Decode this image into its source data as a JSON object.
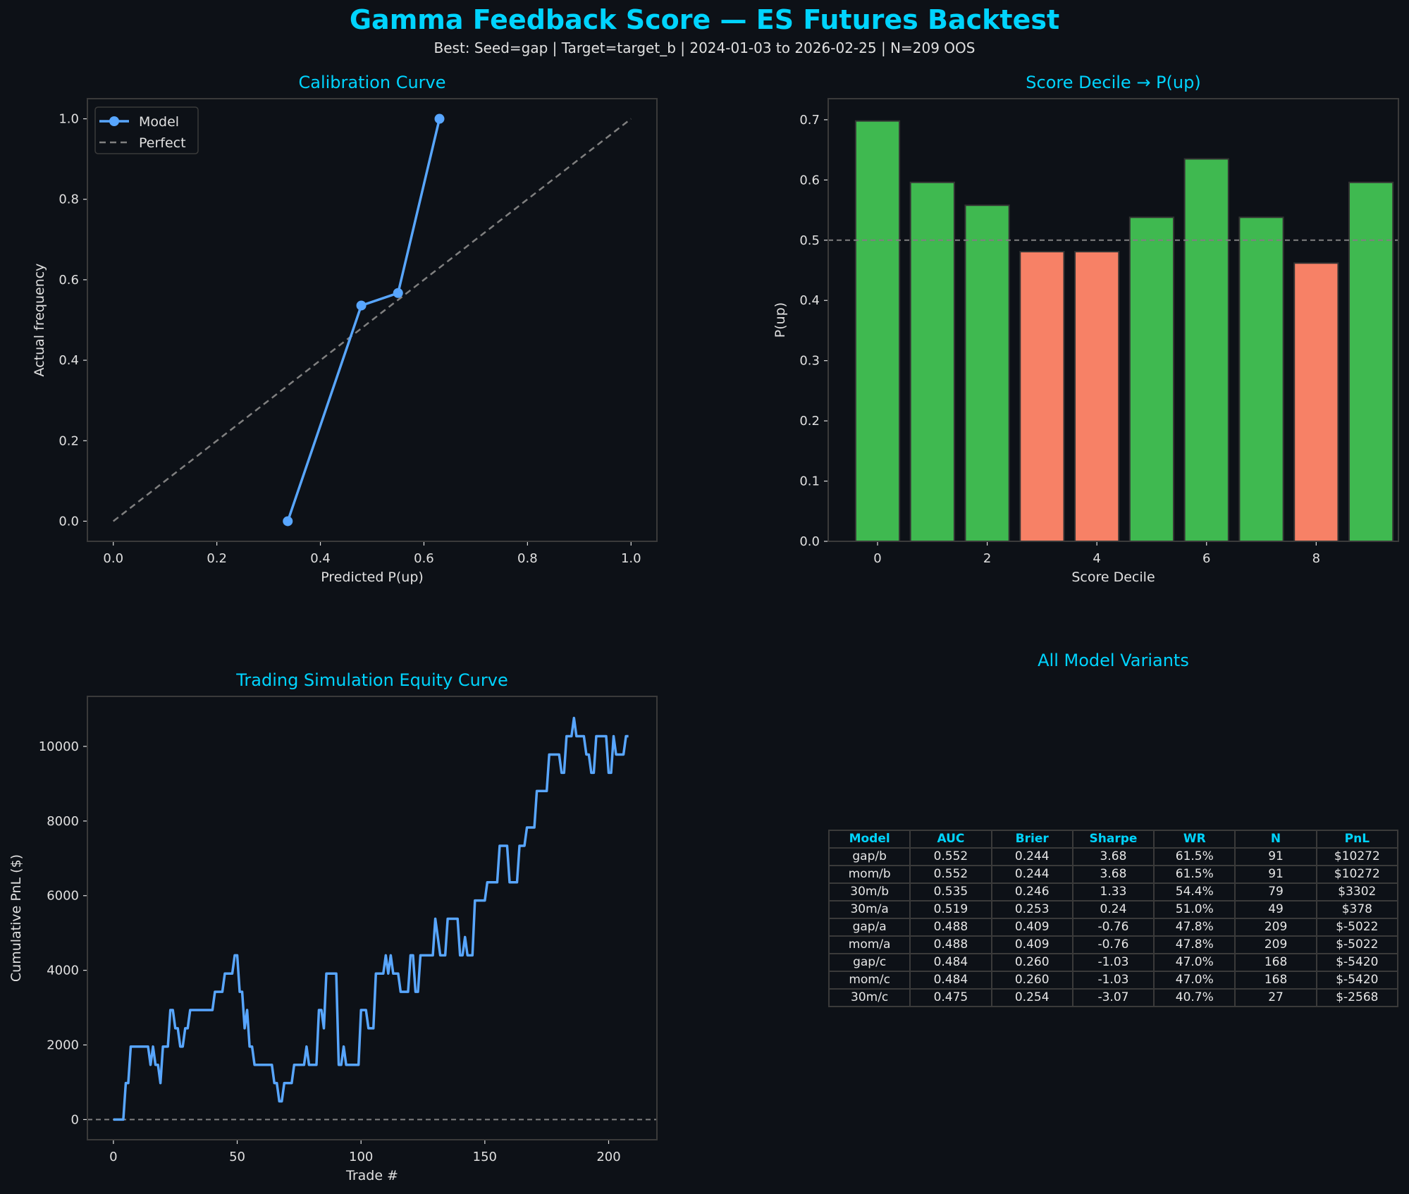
{
  "header": {
    "title": "Gamma Feedback Score — ES Futures Backtest",
    "subtitle": "Best: Seed=gap | Target=target_b | 2024-01-03 to 2026-02-25 | N=209 OOS"
  },
  "colors": {
    "background": "#0d1117",
    "accent": "#00d4ff",
    "model_line": "#58a6ff",
    "reference_line": "#808080",
    "bar_above": "#3fb950",
    "bar_below": "#f78166",
    "spine": "#3a3a3a",
    "text": "#e0e0e0"
  },
  "chart_data": [
    {
      "id": "calibration",
      "type": "line",
      "title": "Calibration Curve",
      "xlabel": "Predicted P(up)",
      "ylabel": "Actual frequency",
      "xlim": [
        -0.05,
        1.05
      ],
      "ylim": [
        -0.05,
        1.05
      ],
      "xticks": [
        0.0,
        0.2,
        0.4,
        0.6,
        0.8,
        1.0
      ],
      "yticks": [
        0.0,
        0.2,
        0.4,
        0.6,
        0.8,
        1.0
      ],
      "xtick_labels": [
        "0.0",
        "0.2",
        "0.4",
        "0.6",
        "0.8",
        "1.0"
      ],
      "ytick_labels": [
        "0.0",
        "0.2",
        "0.4",
        "0.6",
        "0.8",
        "1.0"
      ],
      "legend": {
        "position": "top-left",
        "entries": [
          "Model",
          "Perfect"
        ]
      },
      "series": [
        {
          "name": "Model",
          "style": "solid-marker",
          "x": [
            0.337,
            0.479,
            0.55,
            0.63
          ],
          "y": [
            0.0,
            0.536,
            0.567,
            1.0
          ]
        },
        {
          "name": "Perfect",
          "style": "dashed",
          "x": [
            0.0,
            1.0
          ],
          "y": [
            0.0,
            1.0
          ]
        }
      ]
    },
    {
      "id": "decile",
      "type": "bar",
      "title": "Score Decile → P(up)",
      "xlabel": "Score Decile",
      "ylabel": "P(up)",
      "categories": [
        0,
        1,
        2,
        3,
        4,
        5,
        6,
        7,
        8,
        9
      ],
      "values": [
        0.698,
        0.596,
        0.558,
        0.481,
        0.481,
        0.538,
        0.635,
        0.538,
        0.462,
        0.596
      ],
      "reference_line": 0.5,
      "xlim": [
        -0.9,
        9.5
      ],
      "ylim": [
        0.0,
        0.735
      ],
      "xticks": [
        0,
        2,
        4,
        6,
        8
      ],
      "xtick_labels": [
        "0",
        "2",
        "4",
        "6",
        "8"
      ],
      "yticks": [
        0.0,
        0.1,
        0.2,
        0.3,
        0.4,
        0.5,
        0.6,
        0.7
      ],
      "ytick_labels": [
        "0.0",
        "0.1",
        "0.2",
        "0.3",
        "0.4",
        "0.5",
        "0.6",
        "0.7"
      ]
    },
    {
      "id": "equity",
      "type": "line",
      "title": "Trading Simulation Equity Curve",
      "xlabel": "Trade #",
      "ylabel": "Cumulative PnL ($)",
      "xlim": [
        -10.5,
        219.5
      ],
      "ylim": [
        -540,
        11340
      ],
      "xticks": [
        0,
        50,
        100,
        150,
        200
      ],
      "xtick_labels": [
        "0",
        "50",
        "100",
        "150",
        "200"
      ],
      "yticks": [
        0,
        2000,
        4000,
        6000,
        8000,
        10000
      ],
      "ytick_labels": [
        "0",
        "2000",
        "4000",
        "6000",
        "8000",
        "10000"
      ],
      "reference_line": 0,
      "unit_step": 489.14,
      "steps": [
        0,
        0,
        0,
        0,
        0,
        2,
        2,
        4,
        4,
        4,
        4,
        4,
        4,
        4,
        4,
        3,
        4,
        3,
        3,
        2,
        4,
        4,
        4,
        6,
        6,
        5,
        5,
        4,
        4,
        5,
        5,
        6,
        6,
        6,
        6,
        6,
        6,
        6,
        6,
        6,
        6,
        7,
        7,
        7,
        7,
        8,
        8,
        8,
        8,
        9,
        9,
        7,
        7,
        5,
        6,
        4,
        4,
        3,
        3,
        3,
        3,
        3,
        3,
        3,
        3,
        2,
        2,
        1,
        1,
        2,
        2,
        2,
        2,
        3,
        3,
        3,
        3,
        3,
        4,
        3,
        3,
        3,
        3,
        6,
        6,
        5,
        8,
        8,
        8,
        8,
        8,
        3,
        3,
        4,
        3,
        3,
        3,
        3,
        3,
        3,
        6,
        6,
        6,
        5,
        5,
        5,
        8,
        8,
        8,
        8,
        9,
        8,
        9,
        8,
        8,
        8,
        7,
        7,
        7,
        7,
        9,
        9,
        7,
        7,
        9,
        9,
        9,
        9,
        9,
        9,
        11,
        10,
        9,
        9,
        9,
        11,
        11,
        11,
        11,
        11,
        9,
        9,
        10,
        9,
        9,
        9,
        12,
        12,
        12,
        12,
        12,
        13,
        13,
        13,
        13,
        13,
        15,
        15,
        15,
        15,
        13,
        13,
        13,
        13,
        15,
        15,
        15,
        16,
        16,
        16,
        16,
        18,
        18,
        18,
        18,
        18,
        20,
        20,
        20,
        20,
        20,
        19,
        19,
        21,
        21,
        21,
        22,
        21,
        21,
        21,
        21,
        20,
        20,
        19,
        19,
        21,
        21,
        21,
        21,
        21,
        19,
        19,
        21,
        20,
        20,
        20,
        20,
        21,
        21
      ]
    }
  ],
  "table": {
    "title": "All Model Variants",
    "columns": [
      "Model",
      "AUC",
      "Brier",
      "Sharpe",
      "WR",
      "N",
      "PnL"
    ],
    "rows": [
      [
        "gap/b",
        "0.552",
        "0.244",
        "3.68",
        "61.5%",
        "91",
        "$10272"
      ],
      [
        "mom/b",
        "0.552",
        "0.244",
        "3.68",
        "61.5%",
        "91",
        "$10272"
      ],
      [
        "30m/b",
        "0.535",
        "0.246",
        "1.33",
        "54.4%",
        "79",
        "$3302"
      ],
      [
        "30m/a",
        "0.519",
        "0.253",
        "0.24",
        "51.0%",
        "49",
        "$378"
      ],
      [
        "gap/a",
        "0.488",
        "0.409",
        "-0.76",
        "47.8%",
        "209",
        "$-5022"
      ],
      [
        "mom/a",
        "0.488",
        "0.409",
        "-0.76",
        "47.8%",
        "209",
        "$-5022"
      ],
      [
        "gap/c",
        "0.484",
        "0.260",
        "-1.03",
        "47.0%",
        "168",
        "$-5420"
      ],
      [
        "mom/c",
        "0.484",
        "0.260",
        "-1.03",
        "47.0%",
        "168",
        "$-5420"
      ],
      [
        "30m/c",
        "0.475",
        "0.254",
        "-3.07",
        "40.7%",
        "27",
        "$-2568"
      ]
    ]
  }
}
